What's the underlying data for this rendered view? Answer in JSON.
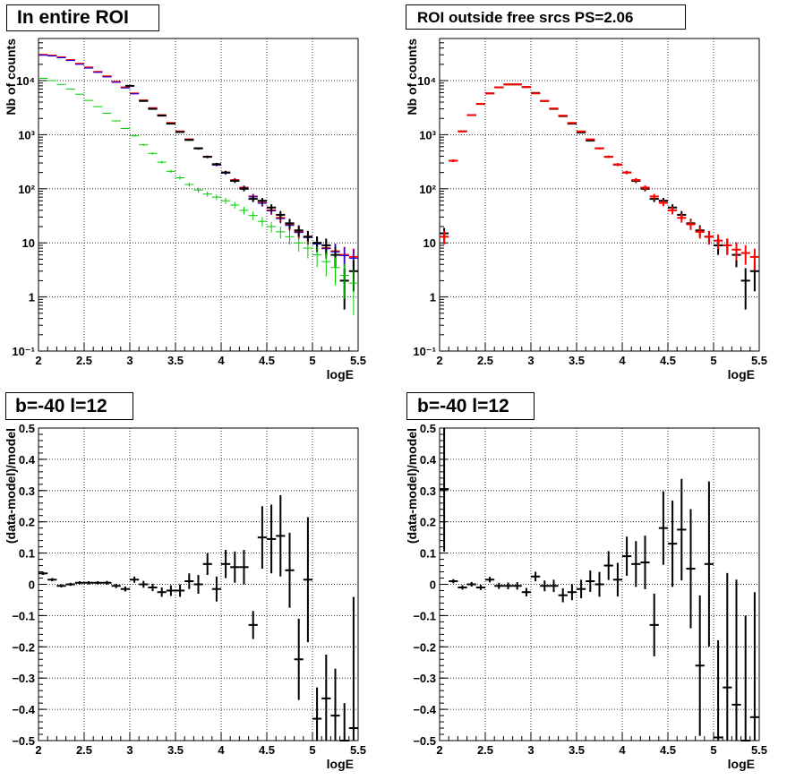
{
  "panels": [
    {
      "title": "In entire ROI"
    },
    {
      "title": "ROI outside free srcs PS=2.06"
    },
    {
      "title": "b=-40 l=12"
    },
    {
      "title": "b=-40 l=12"
    }
  ],
  "chart_data": [
    {
      "type": "scatter",
      "title": "In entire ROI",
      "xlabel": "logE",
      "ylabel": "Nb of counts",
      "xlim": [
        2,
        5.5
      ],
      "ylim": [
        0.1,
        60000
      ],
      "yscale": "log",
      "grid": true,
      "x_ticks": [
        "2",
        "2.5",
        "3",
        "3.5",
        "4",
        "4.5",
        "5",
        "5.5"
      ],
      "y_ticks": [
        "10⁻¹",
        "1",
        "10",
        "10²",
        "10³",
        "10⁴"
      ],
      "series": [
        {
          "color": "#ff0000",
          "x": [
            2.05,
            2.15,
            2.25,
            2.35,
            2.45,
            2.55,
            2.65,
            2.75,
            2.85,
            2.95,
            3.05,
            3.15,
            3.25,
            3.35,
            3.45,
            3.55,
            3.65,
            3.75,
            3.85,
            3.95,
            4.05,
            4.15,
            4.25,
            4.35,
            4.45,
            4.55,
            4.65,
            4.75,
            4.85,
            4.95,
            5.05,
            5.15,
            5.25,
            5.35,
            5.45
          ],
          "y": [
            30000,
            29000,
            27000,
            24000,
            20500,
            17500,
            14500,
            12000,
            9500,
            7500,
            5800,
            4300,
            3100,
            2300,
            1650,
            1150,
            820,
            560,
            390,
            280,
            200,
            145,
            105,
            72,
            55,
            40,
            29,
            22,
            16,
            13,
            10,
            8,
            7,
            6,
            5.5
          ]
        },
        {
          "color": "#0000ff",
          "x": [
            2.05,
            2.15,
            2.25,
            2.35,
            2.45,
            2.55,
            2.65,
            2.75,
            2.85,
            2.95,
            3.05,
            3.15,
            3.25,
            3.35,
            3.45,
            3.55,
            3.65,
            3.75,
            3.85,
            3.95,
            4.05,
            4.15,
            4.25,
            4.35,
            4.45,
            4.55,
            4.65,
            4.75,
            4.85,
            4.95,
            5.05,
            5.15,
            5.25,
            5.35,
            5.45
          ],
          "y": [
            29500,
            28500,
            26500,
            23500,
            20000,
            17000,
            14200,
            11700,
            9300,
            7300,
            5700,
            4200,
            3050,
            2250,
            1600,
            1120,
            800,
            550,
            385,
            275,
            195,
            142,
            103,
            71,
            54,
            39,
            28,
            21,
            15.5,
            12.5,
            9.5,
            7.8,
            6.8,
            5.8,
            5.2
          ]
        },
        {
          "color": "#000000",
          "x": [
            3.0,
            3.15,
            3.25,
            3.35,
            3.45,
            3.55,
            3.65,
            3.75,
            3.85,
            3.95,
            4.05,
            4.15,
            4.25,
            4.35,
            4.45,
            4.55,
            4.65,
            4.75,
            4.85,
            4.95,
            5.05,
            5.15,
            5.25,
            5.35,
            5.45
          ],
          "y": [
            8000,
            4200,
            3000,
            2250,
            1600,
            1120,
            800,
            560,
            390,
            285,
            200,
            140,
            100,
            65,
            60,
            45,
            33,
            23,
            17,
            13,
            10,
            9,
            6,
            2,
            3
          ]
        },
        {
          "color": "#00cc00",
          "x": [
            2.05,
            2.15,
            2.25,
            2.35,
            2.45,
            2.55,
            2.65,
            2.75,
            2.85,
            2.95,
            3.05,
            3.15,
            3.25,
            3.35,
            3.45,
            3.55,
            3.65,
            3.75,
            3.85,
            3.95,
            4.05,
            4.15,
            4.25,
            4.35,
            4.45,
            4.55,
            4.65,
            4.75,
            4.85,
            4.95,
            5.05,
            5.15,
            5.25,
            5.35,
            5.45
          ],
          "y": [
            11000,
            10000,
            8500,
            7000,
            5600,
            4300,
            3300,
            2500,
            1800,
            1300,
            950,
            650,
            450,
            310,
            210,
            160,
            120,
            95,
            80,
            70,
            60,
            50,
            40,
            32,
            25,
            20,
            16,
            13,
            10,
            8,
            6,
            4.5,
            3.5,
            2.5,
            1.8
          ]
        }
      ]
    },
    {
      "type": "scatter",
      "title": "ROI outside free srcs PS=2.06",
      "xlabel": "logE",
      "ylabel": "Nb of counts",
      "xlim": [
        2,
        5.5
      ],
      "ylim": [
        0.1,
        60000
      ],
      "yscale": "log",
      "grid": true,
      "x_ticks": [
        "2",
        "2.5",
        "3",
        "3.5",
        "4",
        "4.5",
        "5",
        "5.5"
      ],
      "y_ticks": [
        "10⁻¹",
        "1",
        "10",
        "10²",
        "10³",
        "10⁴"
      ],
      "series": [
        {
          "color": "#000000",
          "x": [
            2.05,
            2.15,
            2.25,
            2.35,
            2.45,
            2.55,
            2.65,
            2.75,
            2.85,
            2.95,
            3.05,
            3.15,
            3.25,
            3.35,
            3.45,
            3.55,
            3.65,
            3.75,
            3.85,
            3.95,
            4.05,
            4.15,
            4.25,
            4.35,
            4.45,
            4.55,
            4.65,
            4.75,
            4.85,
            4.95,
            5.05,
            5.15,
            5.25,
            5.35,
            5.45
          ],
          "y": [
            15,
            330,
            1150,
            2300,
            3700,
            5800,
            7500,
            8500,
            8500,
            7600,
            5900,
            4200,
            3000,
            2200,
            1600,
            1100,
            780,
            560,
            390,
            280,
            200,
            140,
            100,
            65,
            60,
            45,
            33,
            23,
            17,
            13,
            9,
            9,
            6,
            2,
            3
          ]
        },
        {
          "color": "#ff0000",
          "x": [
            2.05,
            2.15,
            2.25,
            2.35,
            2.45,
            2.55,
            2.65,
            2.75,
            2.85,
            2.95,
            3.05,
            3.15,
            3.25,
            3.35,
            3.45,
            3.55,
            3.65,
            3.75,
            3.85,
            3.95,
            4.05,
            4.15,
            4.25,
            4.35,
            4.45,
            4.55,
            4.65,
            4.75,
            4.85,
            4.95,
            5.05,
            5.15,
            5.25,
            5.35,
            5.45
          ],
          "y": [
            13,
            330,
            1150,
            2300,
            3700,
            5800,
            7500,
            8500,
            8500,
            7600,
            5800,
            4200,
            3050,
            2250,
            1650,
            1150,
            820,
            560,
            390,
            280,
            200,
            145,
            105,
            72,
            55,
            40,
            29,
            22,
            16,
            13,
            11,
            9,
            7.5,
            6.5,
            5.5
          ]
        }
      ]
    },
    {
      "type": "scatter",
      "title": "b=-40 l=12",
      "xlabel": "logE",
      "ylabel": "(data-model)/model",
      "xlim": [
        2,
        5.5
      ],
      "ylim": [
        -0.5,
        0.5
      ],
      "grid": true,
      "x_ticks": [
        "2",
        "2.5",
        "3",
        "3.5",
        "4",
        "4.5",
        "5",
        "5.5"
      ],
      "y_ticks": [
        "−0.5",
        "−0.4",
        "−0.3",
        "−0.2",
        "−0.1",
        "0",
        "0.1",
        "0.2",
        "0.3",
        "0.4",
        "0.5"
      ],
      "series": [
        {
          "color": "#000000",
          "x": [
            2.05,
            2.15,
            2.25,
            2.35,
            2.45,
            2.55,
            2.65,
            2.75,
            2.85,
            2.95,
            3.05,
            3.15,
            3.25,
            3.35,
            3.45,
            3.55,
            3.65,
            3.75,
            3.85,
            3.95,
            4.05,
            4.15,
            4.25,
            4.35,
            4.45,
            4.55,
            4.65,
            4.75,
            4.85,
            4.95,
            5.05,
            5.15,
            5.25,
            5.35,
            5.45
          ],
          "y": [
            0.035,
            0.015,
            -0.005,
            0.0,
            0.005,
            0.005,
            0.005,
            0.005,
            -0.005,
            -0.015,
            0.015,
            0.0,
            -0.01,
            -0.025,
            -0.02,
            -0.02,
            0.01,
            0.0,
            0.065,
            -0.015,
            0.065,
            0.055,
            0.055,
            -0.13,
            0.15,
            0.145,
            0.155,
            0.045,
            -0.24,
            0.015,
            -0.43,
            -0.365,
            -0.42,
            -0.5,
            -0.46
          ],
          "err": [
            0.005,
            0.005,
            0.005,
            0.005,
            0.005,
            0.005,
            0.005,
            0.006,
            0.007,
            0.008,
            0.01,
            0.011,
            0.012,
            0.015,
            0.017,
            0.02,
            0.025,
            0.03,
            0.035,
            0.04,
            0.045,
            0.05,
            0.055,
            0.045,
            0.1,
            0.11,
            0.13,
            0.12,
            0.13,
            0.2,
            0.1,
            0.14,
            0.15,
            0.12,
            0.42
          ]
        }
      ]
    },
    {
      "type": "scatter",
      "title": "b=-40 l=12",
      "xlabel": "logE",
      "ylabel": "(data-model)/model",
      "xlim": [
        2,
        5.5
      ],
      "ylim": [
        -0.5,
        0.5
      ],
      "grid": true,
      "x_ticks": [
        "2",
        "2.5",
        "3",
        "3.5",
        "4",
        "4.5",
        "5",
        "5.5"
      ],
      "y_ticks": [
        "−0.5",
        "−0.4",
        "−0.3",
        "−0.2",
        "−0.1",
        "0",
        "0.1",
        "0.2",
        "0.3",
        "0.4",
        "0.5"
      ],
      "series": [
        {
          "color": "#000000",
          "x": [
            2.05,
            2.15,
            2.25,
            2.35,
            2.45,
            2.55,
            2.65,
            2.75,
            2.85,
            2.95,
            3.05,
            3.15,
            3.25,
            3.35,
            3.45,
            3.55,
            3.65,
            3.75,
            3.85,
            3.95,
            4.05,
            4.15,
            4.25,
            4.35,
            4.45,
            4.55,
            4.65,
            4.75,
            4.85,
            4.95,
            5.05,
            5.15,
            5.25,
            5.35,
            5.45
          ],
          "y": [
            0.305,
            0.01,
            -0.01,
            0.0,
            -0.01,
            0.015,
            -0.005,
            -0.005,
            -0.005,
            -0.025,
            0.025,
            -0.005,
            -0.005,
            -0.035,
            -0.025,
            -0.015,
            0.01,
            0.0,
            0.06,
            0.015,
            0.09,
            0.065,
            0.07,
            -0.13,
            0.18,
            0.13,
            0.175,
            0.05,
            -0.26,
            0.065,
            -0.49,
            -0.33,
            -0.385,
            -0.5,
            -0.425
          ]
        }
      ]
    }
  ]
}
